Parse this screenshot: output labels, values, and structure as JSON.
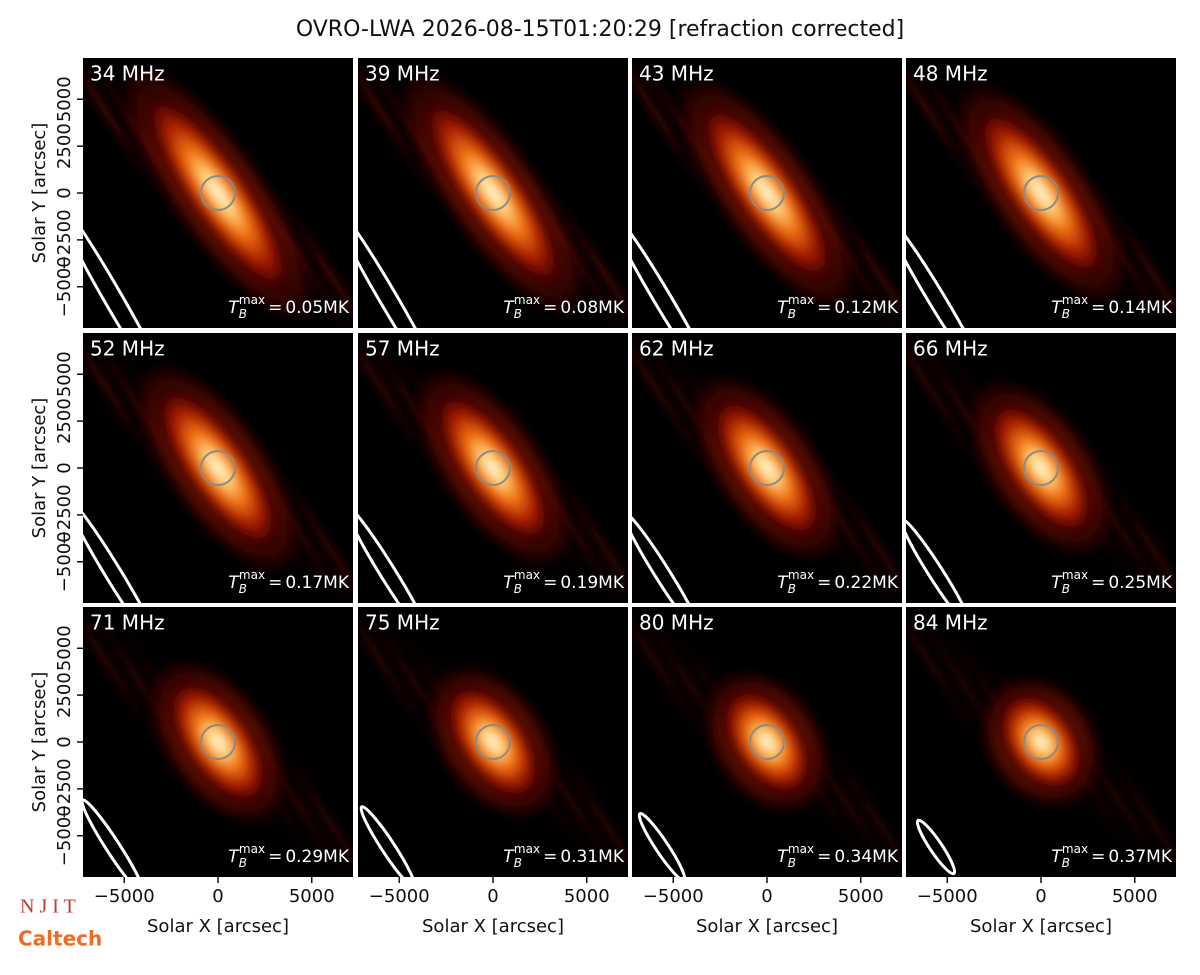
{
  "chart_data": {
    "type": "image_grid",
    "title": "OVRO-LWA 2026-08-15T01:20:29 [refraction corrected]",
    "xlabel": "Solar X [arcsec]",
    "ylabel": "Solar Y [arcsec]",
    "xlim": [
      -7200,
      7200
    ],
    "ylim": [
      -7200,
      7200
    ],
    "xticks": [
      {
        "value": -5000,
        "label": "−5000"
      },
      0,
      5000
    ],
    "yticks": [
      {
        "value": -5000,
        "label": "−5000"
      },
      {
        "value": -2500,
        "label": "−2500"
      },
      0,
      2500,
      5000
    ],
    "tb_symbol": {
      "base": "T",
      "sub": "B",
      "sup": "max",
      "eq": "="
    },
    "panels": [
      {
        "label": "34 MHz",
        "tb_max": "0.05MK"
      },
      {
        "label": "39 MHz",
        "tb_max": "0.08MK"
      },
      {
        "label": "43 MHz",
        "tb_max": "0.12MK"
      },
      {
        "label": "48 MHz",
        "tb_max": "0.14MK"
      },
      {
        "label": "52 MHz",
        "tb_max": "0.17MK"
      },
      {
        "label": "57 MHz",
        "tb_max": "0.19MK"
      },
      {
        "label": "62 MHz",
        "tb_max": "0.22MK"
      },
      {
        "label": "66 MHz",
        "tb_max": "0.25MK"
      },
      {
        "label": "71 MHz",
        "tb_max": "0.29MK"
      },
      {
        "label": "75 MHz",
        "tb_max": "0.31MK"
      },
      {
        "label": "80 MHz",
        "tb_max": "0.34MK"
      },
      {
        "label": "84 MHz",
        "tb_max": "0.37MK"
      }
    ]
  },
  "logos": {
    "njit": "N J I T",
    "caltech": "Caltech"
  }
}
